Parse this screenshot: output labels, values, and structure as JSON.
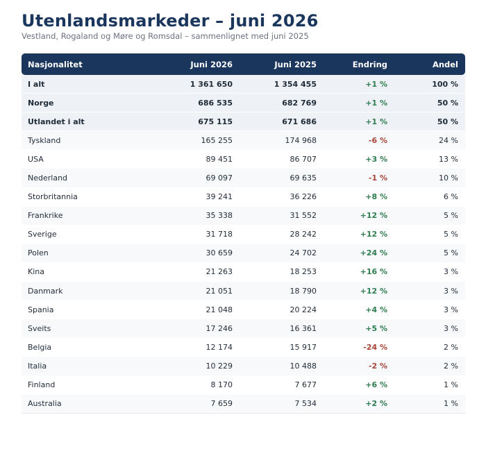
{
  "title": "Utenlandsmarkeder – juni 2026",
  "subtitle": "Vestland, Rogaland og Møre og Romsdal – sammenlignet med juni 2025",
  "colors": {
    "header_bg": "#1b365d",
    "positive": "#2e7d4f",
    "negative": "#a94438"
  },
  "table": {
    "columns": [
      "Nasjonalitet",
      "Juni 2026",
      "Juni 2025",
      "Endring",
      "Andel"
    ],
    "rows": [
      {
        "name": "I alt",
        "v2026": "1 361 650",
        "v2025": "1 354 455",
        "change": "+1 %",
        "share": "100 %",
        "aggregate": true,
        "trend": "pos"
      },
      {
        "name": "Norge",
        "v2026": "686 535",
        "v2025": "682 769",
        "change": "+1 %",
        "share": "50 %",
        "aggregate": true,
        "trend": "pos"
      },
      {
        "name": "Utlandet i alt",
        "v2026": "675 115",
        "v2025": "671 686",
        "change": "+1 %",
        "share": "50 %",
        "aggregate": true,
        "trend": "pos"
      },
      {
        "name": "Tyskland",
        "v2026": "165 255",
        "v2025": "174 968",
        "change": "-6 %",
        "share": "24 %",
        "aggregate": false,
        "trend": "neg"
      },
      {
        "name": "USA",
        "v2026": "89 451",
        "v2025": "86 707",
        "change": "+3 %",
        "share": "13 %",
        "aggregate": false,
        "trend": "pos"
      },
      {
        "name": "Nederland",
        "v2026": "69 097",
        "v2025": "69 635",
        "change": "-1 %",
        "share": "10 %",
        "aggregate": false,
        "trend": "neg"
      },
      {
        "name": "Storbritannia",
        "v2026": "39 241",
        "v2025": "36 226",
        "change": "+8 %",
        "share": "6 %",
        "aggregate": false,
        "trend": "pos"
      },
      {
        "name": "Frankrike",
        "v2026": "35 338",
        "v2025": "31 552",
        "change": "+12 %",
        "share": "5 %",
        "aggregate": false,
        "trend": "pos"
      },
      {
        "name": "Sverige",
        "v2026": "31 718",
        "v2025": "28 242",
        "change": "+12 %",
        "share": "5 %",
        "aggregate": false,
        "trend": "pos"
      },
      {
        "name": "Polen",
        "v2026": "30 659",
        "v2025": "24 702",
        "change": "+24 %",
        "share": "5 %",
        "aggregate": false,
        "trend": "pos"
      },
      {
        "name": "Kina",
        "v2026": "21 263",
        "v2025": "18 253",
        "change": "+16 %",
        "share": "3 %",
        "aggregate": false,
        "trend": "pos"
      },
      {
        "name": "Danmark",
        "v2026": "21 051",
        "v2025": "18 790",
        "change": "+12 %",
        "share": "3 %",
        "aggregate": false,
        "trend": "pos"
      },
      {
        "name": "Spania",
        "v2026": "21 048",
        "v2025": "20 224",
        "change": "+4 %",
        "share": "3 %",
        "aggregate": false,
        "trend": "pos"
      },
      {
        "name": "Sveits",
        "v2026": "17 246",
        "v2025": "16 361",
        "change": "+5 %",
        "share": "3 %",
        "aggregate": false,
        "trend": "pos"
      },
      {
        "name": "Belgia",
        "v2026": "12 174",
        "v2025": "15 917",
        "change": "-24 %",
        "share": "2 %",
        "aggregate": false,
        "trend": "neg"
      },
      {
        "name": "Italia",
        "v2026": "10 229",
        "v2025": "10 488",
        "change": "-2 %",
        "share": "2 %",
        "aggregate": false,
        "trend": "neg"
      },
      {
        "name": "Finland",
        "v2026": "8 170",
        "v2025": "7 677",
        "change": "+6 %",
        "share": "1 %",
        "aggregate": false,
        "trend": "pos"
      },
      {
        "name": "Australia",
        "v2026": "7 659",
        "v2025": "7 534",
        "change": "+2 %",
        "share": "1 %",
        "aggregate": false,
        "trend": "pos"
      }
    ]
  }
}
